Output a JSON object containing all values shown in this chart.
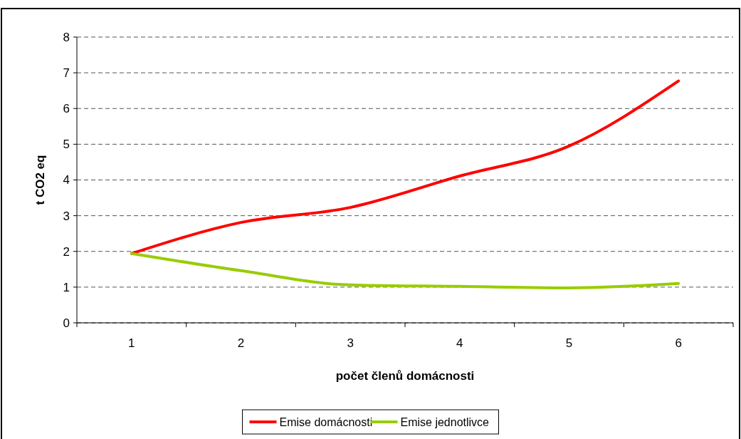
{
  "chart_data": {
    "type": "line",
    "xlabel": "počet členů domácnosti",
    "ylabel": "t CO2 eq",
    "categories": [
      "1",
      "2",
      "3",
      "4",
      "5",
      "6"
    ],
    "series": [
      {
        "name": "Emise domácnosti",
        "color": "#ff0000",
        "values": [
          1.94,
          2.81,
          3.23,
          4.11,
          4.95,
          6.77
        ]
      },
      {
        "name": "Emise jednotlivce",
        "color": "#99cc00",
        "values": [
          1.94,
          1.46,
          1.06,
          1.02,
          0.98,
          1.1
        ]
      }
    ],
    "ylim": [
      0,
      8
    ],
    "yticks": [
      0,
      1,
      2,
      3,
      4,
      5,
      6,
      7,
      8
    ],
    "grid": "y",
    "legend": "bottom",
    "line_style": "solid",
    "marker": "none"
  }
}
